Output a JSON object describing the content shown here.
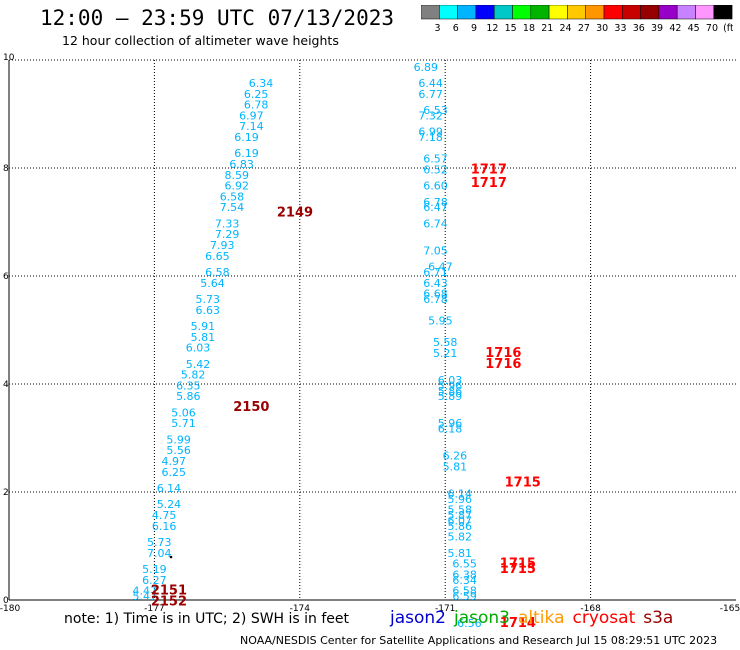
{
  "header": {
    "title": "12:00 – 23:59 UTC 07/13/2023",
    "subtitle": "12 hour collection of altimeter wave heights"
  },
  "colorbar": {
    "labels": [
      "3",
      "6",
      "9",
      "12",
      "15",
      "18",
      "21",
      "24",
      "27",
      "30",
      "33",
      "36",
      "39",
      "42",
      "45",
      "70",
      "(ft)"
    ],
    "colors": [
      "#808080",
      "#00ffff",
      "#00b4ff",
      "#0000ff",
      "#00c8c8",
      "#00ff00",
      "#00b400",
      "#ffff00",
      "#ffc800",
      "#ff9600",
      "#ff0000",
      "#c80000",
      "#960000",
      "#9600c8",
      "#c882ff",
      "#ff96ff",
      "#000000"
    ]
  },
  "footer": {
    "note": "note:  1) Time is in UTC;  2) SWH is in feet",
    "credit": "NOAA/NESDIS Center for Satellite Applications and Research    Jul 15 08:29:51 UTC 2023",
    "missions": [
      {
        "name": "jason2",
        "color": "#0000cc"
      },
      {
        "name": "jason3",
        "color": "#00aa00"
      },
      {
        "name": "altika",
        "color": "#ff9900"
      },
      {
        "name": "cryosat",
        "color": "#ff0000"
      },
      {
        "name": "s3a",
        "color": "#990000"
      }
    ]
  },
  "chart_data": {
    "type": "scatter",
    "xlim": [
      -180,
      -165
    ],
    "ylim": [
      0,
      10
    ],
    "x_ticks": [
      "-180",
      "-177",
      "-174",
      "-171",
      "-168",
      "-165"
    ],
    "y_ticks": [
      "0",
      "2",
      "4",
      "6",
      "8",
      "10"
    ],
    "grid": true,
    "wave_heights_ft": [
      {
        "lon": -174.8,
        "lat": 9.5,
        "v": "6.34"
      },
      {
        "lon": -174.9,
        "lat": 9.3,
        "v": "6.25"
      },
      {
        "lon": -174.9,
        "lat": 9.1,
        "v": "6.78"
      },
      {
        "lon": -175.0,
        "lat": 8.9,
        "v": "6.97"
      },
      {
        "lon": -175.0,
        "lat": 8.7,
        "v": "7.14"
      },
      {
        "lon": -175.1,
        "lat": 8.5,
        "v": "6.19"
      },
      {
        "lon": -175.1,
        "lat": 8.2,
        "v": "6.19"
      },
      {
        "lon": -175.2,
        "lat": 8.0,
        "v": "6.83"
      },
      {
        "lon": -175.3,
        "lat": 7.8,
        "v": "8.59"
      },
      {
        "lon": -175.3,
        "lat": 7.6,
        "v": "6.92"
      },
      {
        "lon": -175.4,
        "lat": 7.4,
        "v": "6.58"
      },
      {
        "lon": -175.4,
        "lat": 7.2,
        "v": "7.54"
      },
      {
        "lon": -175.5,
        "lat": 6.9,
        "v": "7.33"
      },
      {
        "lon": -175.5,
        "lat": 6.7,
        "v": "7.29"
      },
      {
        "lon": -175.6,
        "lat": 6.5,
        "v": "7.93"
      },
      {
        "lon": -175.7,
        "lat": 6.3,
        "v": "6.65"
      },
      {
        "lon": -175.7,
        "lat": 6.0,
        "v": "6.58"
      },
      {
        "lon": -175.8,
        "lat": 5.8,
        "v": "5.64"
      },
      {
        "lon": -175.9,
        "lat": 5.5,
        "v": "5.73"
      },
      {
        "lon": -175.9,
        "lat": 5.3,
        "v": "6.63"
      },
      {
        "lon": -176.0,
        "lat": 5.0,
        "v": "5.91"
      },
      {
        "lon": -176.0,
        "lat": 4.8,
        "v": "5.81"
      },
      {
        "lon": -176.1,
        "lat": 4.6,
        "v": "6.03"
      },
      {
        "lon": -176.1,
        "lat": 4.3,
        "v": "5.42"
      },
      {
        "lon": -176.2,
        "lat": 4.1,
        "v": "5.82"
      },
      {
        "lon": -176.3,
        "lat": 3.9,
        "v": "6.35"
      },
      {
        "lon": -176.3,
        "lat": 3.7,
        "v": "5.86"
      },
      {
        "lon": -176.4,
        "lat": 3.4,
        "v": "5.06"
      },
      {
        "lon": -176.4,
        "lat": 3.2,
        "v": "5.71"
      },
      {
        "lon": -176.5,
        "lat": 2.9,
        "v": "5.99"
      },
      {
        "lon": -176.5,
        "lat": 2.7,
        "v": "5.56"
      },
      {
        "lon": -176.6,
        "lat": 2.5,
        "v": "4.97"
      },
      {
        "lon": -176.6,
        "lat": 2.3,
        "v": "6.25"
      },
      {
        "lon": -176.7,
        "lat": 2.0,
        "v": "6.14"
      },
      {
        "lon": -176.7,
        "lat": 1.7,
        "v": "5.24"
      },
      {
        "lon": -176.8,
        "lat": 1.5,
        "v": "4.75"
      },
      {
        "lon": -176.8,
        "lat": 1.3,
        "v": "6.16"
      },
      {
        "lon": -176.9,
        "lat": 1.0,
        "v": "5.73"
      },
      {
        "lon": -176.9,
        "lat": 0.8,
        "v": "7.04"
      },
      {
        "lon": -177.0,
        "lat": 0.5,
        "v": "5.19"
      },
      {
        "lon": -177.0,
        "lat": 0.3,
        "v": "6.27"
      },
      {
        "lon": -177.2,
        "lat": 0.1,
        "v": "4.47"
      },
      {
        "lon": -177.2,
        "lat": 0.0,
        "v": "5.47"
      },
      {
        "lon": -171.4,
        "lat": 9.8,
        "v": "6.89"
      },
      {
        "lon": -171.3,
        "lat": 9.5,
        "v": "6.44"
      },
      {
        "lon": -171.3,
        "lat": 9.3,
        "v": "6.77"
      },
      {
        "lon": -171.2,
        "lat": 9.0,
        "v": "6.53"
      },
      {
        "lon": -171.3,
        "lat": 8.9,
        "v": "7.32"
      },
      {
        "lon": -171.3,
        "lat": 8.6,
        "v": "6.99"
      },
      {
        "lon": -171.3,
        "lat": 8.5,
        "v": "7.18"
      },
      {
        "lon": -171.2,
        "lat": 8.1,
        "v": "6.57"
      },
      {
        "lon": -171.2,
        "lat": 7.9,
        "v": "6.52"
      },
      {
        "lon": -171.2,
        "lat": 7.6,
        "v": "6.60"
      },
      {
        "lon": -171.2,
        "lat": 7.3,
        "v": "6.78"
      },
      {
        "lon": -171.2,
        "lat": 7.2,
        "v": "6.47"
      },
      {
        "lon": -171.2,
        "lat": 6.9,
        "v": "6.74"
      },
      {
        "lon": -171.2,
        "lat": 6.4,
        "v": "7.05"
      },
      {
        "lon": -171.1,
        "lat": 6.1,
        "v": "6.47"
      },
      {
        "lon": -171.2,
        "lat": 6.0,
        "v": "6.71"
      },
      {
        "lon": -171.2,
        "lat": 5.8,
        "v": "6.43"
      },
      {
        "lon": -171.2,
        "lat": 5.6,
        "v": "6.68"
      },
      {
        "lon": -171.2,
        "lat": 5.5,
        "v": "6.78"
      },
      {
        "lon": -171.1,
        "lat": 5.1,
        "v": "5.95"
      },
      {
        "lon": -171.0,
        "lat": 4.7,
        "v": "5.58"
      },
      {
        "lon": -171.0,
        "lat": 4.5,
        "v": "5.21"
      },
      {
        "lon": -170.9,
        "lat": 4.0,
        "v": "6.03"
      },
      {
        "lon": -170.9,
        "lat": 3.9,
        "v": "5.96"
      },
      {
        "lon": -170.9,
        "lat": 3.8,
        "v": "5.86"
      },
      {
        "lon": -170.9,
        "lat": 3.7,
        "v": "5.89"
      },
      {
        "lon": -170.9,
        "lat": 3.2,
        "v": "5.96"
      },
      {
        "lon": -170.9,
        "lat": 3.1,
        "v": "6.18"
      },
      {
        "lon": -170.8,
        "lat": 2.6,
        "v": "6.26"
      },
      {
        "lon": -170.8,
        "lat": 2.4,
        "v": "5.81"
      },
      {
        "lon": -170.7,
        "lat": 1.9,
        "v": "6.14"
      },
      {
        "lon": -170.7,
        "lat": 1.8,
        "v": "5.96"
      },
      {
        "lon": -170.7,
        "lat": 1.6,
        "v": "5.58"
      },
      {
        "lon": -170.7,
        "lat": 1.5,
        "v": "5.87"
      },
      {
        "lon": -170.7,
        "lat": 1.4,
        "v": "6.07"
      },
      {
        "lon": -170.7,
        "lat": 1.3,
        "v": "5.86"
      },
      {
        "lon": -170.7,
        "lat": 1.1,
        "v": "5.82"
      },
      {
        "lon": -170.7,
        "lat": 0.8,
        "v": "5.81"
      },
      {
        "lon": -170.6,
        "lat": 0.6,
        "v": "6.55"
      },
      {
        "lon": -170.6,
        "lat": 0.4,
        "v": "6.38"
      },
      {
        "lon": -170.6,
        "lat": 0.3,
        "v": "6.34"
      },
      {
        "lon": -170.6,
        "lat": 0.1,
        "v": "6.58"
      },
      {
        "lon": -170.6,
        "lat": 0.0,
        "v": "6.59"
      },
      {
        "lon": -170.5,
        "lat": -0.5,
        "v": "6.56"
      }
    ],
    "times": [
      {
        "text": "2149",
        "color": "#990000"
      },
      {
        "text": "2150",
        "color": "#990000"
      },
      {
        "text": "2151",
        "color": "#990000"
      },
      {
        "text": "2152",
        "color": "#990000"
      },
      {
        "text": "1717",
        "color": "#ff0000"
      },
      {
        "text": "1717",
        "color": "#ff0000"
      },
      {
        "text": "1716",
        "color": "#ff0000"
      },
      {
        "text": "1716",
        "color": "#ff0000"
      },
      {
        "text": "1715",
        "color": "#ff0000"
      },
      {
        "text": "1715",
        "color": "#ff0000"
      },
      {
        "text": "1715",
        "color": "#ff0000"
      },
      {
        "text": "1714",
        "color": "#ff0000"
      }
    ],
    "value_color": "#00b4ff",
    "grid_color": "#000000"
  }
}
